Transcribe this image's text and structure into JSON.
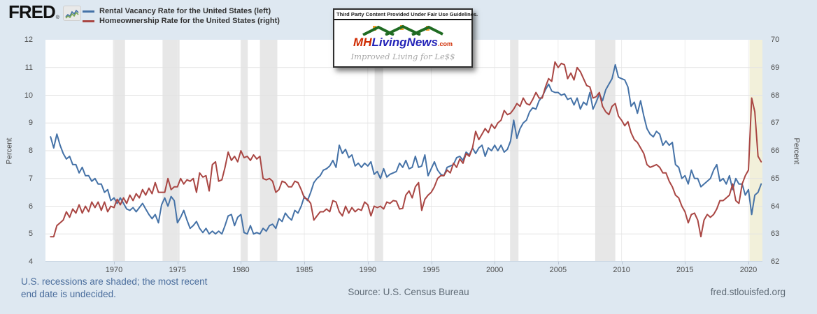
{
  "header": {
    "logo_text": "FRED",
    "registered_mark": "®",
    "legend": [
      {
        "label": "Rental Vacancy Rate for the United States (left)",
        "color": "#4572a7"
      },
      {
        "label": "Homeownership Rate for the United States (right)",
        "color": "#a94643"
      }
    ]
  },
  "watermark": {
    "disclaimer": "Third Party Content Provided Under Fair Use Guidelines.",
    "logo_mh": "MH",
    "logo_main": "LivingNews",
    "logo_tld": ".com",
    "tagline": "Improved Living for Le$$"
  },
  "footer": {
    "recession_note_line1": "U.S. recessions are shaded; the most recent",
    "recession_note_line2": "end date is undecided.",
    "source": "Source: U.S. Census Bureau",
    "site": "fred.stlouisfed.org"
  },
  "chart_data": {
    "type": "line",
    "x_start": 1965.0,
    "x_step": 0.25,
    "x_domain": [
      1964.6,
      2021.1
    ],
    "x_ticks": [
      1970,
      1975,
      1980,
      1985,
      1990,
      1995,
      2000,
      2005,
      2010,
      2015,
      2020
    ],
    "left_axis": {
      "label": "Percent",
      "min": 4,
      "max": 12,
      "ticks": [
        4,
        5,
        6,
        7,
        8,
        9,
        10,
        11,
        12
      ]
    },
    "right_axis": {
      "label": "Percent",
      "min": 62,
      "max": 70,
      "ticks": [
        62,
        63,
        64,
        65,
        66,
        67,
        68,
        69,
        70
      ]
    },
    "grid": {
      "horizontal_color": "#e3e3e3",
      "vertical_color": "#ececec",
      "axis_line_color": "#c9d5e2"
    },
    "recessions": [
      {
        "start": 1969.92,
        "end": 1970.87,
        "color": "#e7e7e7"
      },
      {
        "start": 1973.83,
        "end": 1975.17,
        "color": "#e7e7e7"
      },
      {
        "start": 1980.0,
        "end": 1980.54,
        "color": "#e7e7e7"
      },
      {
        "start": 1981.5,
        "end": 1982.87,
        "color": "#e7e7e7"
      },
      {
        "start": 1990.54,
        "end": 1991.21,
        "color": "#e7e7e7"
      },
      {
        "start": 2001.21,
        "end": 2001.87,
        "color": "#e7e7e7"
      },
      {
        "start": 2007.92,
        "end": 2009.5,
        "color": "#e7e7e7"
      },
      {
        "start": 2020.08,
        "end": 2021.1,
        "color": "#f2f0da",
        "ongoing": true
      }
    ],
    "series": [
      {
        "name": "Rental Vacancy Rate for the United States (left)",
        "axis": "left",
        "color": "#4572a7",
        "values": [
          8.5,
          8.1,
          8.6,
          8.2,
          7.9,
          7.7,
          7.8,
          7.5,
          7.5,
          7.2,
          7.4,
          7.1,
          7.1,
          6.9,
          7.0,
          6.8,
          6.8,
          6.5,
          6.6,
          6.2,
          6.3,
          6.1,
          6.3,
          6.1,
          5.9,
          5.85,
          5.95,
          5.8,
          5.95,
          6.1,
          5.9,
          5.7,
          5.55,
          5.7,
          5.4,
          6.05,
          6.3,
          6.0,
          6.35,
          6.2,
          5.4,
          5.6,
          5.85,
          5.5,
          5.2,
          5.3,
          5.45,
          5.2,
          5.05,
          5.2,
          5.0,
          5.1,
          5.0,
          5.1,
          5.0,
          5.3,
          5.65,
          5.7,
          5.3,
          5.6,
          5.7,
          5.05,
          5.0,
          5.3,
          5.0,
          5.05,
          5.0,
          5.2,
          5.1,
          5.3,
          5.35,
          5.2,
          5.55,
          5.45,
          5.75,
          5.6,
          5.5,
          5.85,
          5.75,
          6.0,
          6.35,
          6.2,
          6.5,
          6.85,
          7.0,
          7.1,
          7.3,
          7.35,
          7.45,
          7.65,
          7.4,
          8.2,
          7.9,
          8.05,
          7.75,
          7.85,
          7.45,
          7.55,
          7.4,
          7.55,
          7.45,
          7.6,
          7.15,
          7.25,
          7.0,
          7.35,
          7.05,
          7.15,
          7.2,
          7.25,
          7.55,
          7.4,
          7.65,
          7.35,
          7.4,
          7.8,
          7.4,
          7.45,
          7.85,
          7.1,
          7.35,
          7.6,
          7.3,
          7.15,
          7.1,
          7.4,
          7.45,
          7.5,
          7.75,
          7.8,
          7.65,
          7.95,
          7.85,
          8.1,
          7.9,
          8.1,
          8.2,
          7.8,
          8.1,
          8.0,
          8.2,
          8.0,
          8.2,
          7.95,
          8.05,
          8.35,
          9.1,
          8.45,
          8.8,
          9.0,
          9.1,
          9.4,
          9.55,
          9.5,
          9.8,
          9.95,
          10.2,
          10.4,
          10.15,
          10.1,
          10.1,
          10.0,
          10.05,
          9.85,
          9.9,
          9.65,
          9.9,
          9.5,
          9.75,
          9.65,
          10.1,
          9.5,
          9.75,
          10.05,
          9.8,
          10.2,
          10.4,
          10.6,
          11.1,
          10.65,
          10.6,
          10.55,
          10.3,
          9.6,
          9.75,
          9.35,
          9.8,
          9.25,
          8.8,
          8.6,
          8.5,
          8.7,
          8.6,
          8.2,
          8.35,
          8.2,
          8.3,
          7.5,
          7.4,
          7.0,
          7.1,
          6.8,
          7.3,
          7.0,
          7.0,
          6.7,
          6.8,
          6.9,
          7.0,
          7.3,
          7.5,
          6.9,
          7.0,
          6.8,
          7.1,
          6.6,
          7.0,
          6.8,
          6.8,
          6.4,
          6.6,
          5.7,
          6.4,
          6.5,
          6.8
        ]
      },
      {
        "name": "Homeownership Rate for the United States (right)",
        "axis": "right",
        "color": "#a94643",
        "values": [
          62.9,
          62.9,
          63.3,
          63.4,
          63.5,
          63.8,
          63.6,
          63.9,
          63.75,
          64.05,
          63.75,
          64.0,
          63.8,
          64.15,
          63.95,
          64.15,
          63.85,
          64.15,
          63.8,
          64.0,
          63.95,
          64.25,
          64.05,
          64.3,
          64.1,
          64.4,
          64.2,
          64.45,
          64.3,
          64.6,
          64.4,
          64.65,
          64.45,
          64.85,
          64.5,
          64.5,
          64.5,
          65.0,
          64.6,
          64.7,
          64.7,
          65.0,
          64.8,
          64.95,
          64.9,
          65.0,
          64.5,
          65.2,
          65.05,
          65.1,
          64.55,
          65.5,
          65.6,
          64.9,
          64.95,
          65.4,
          65.95,
          65.65,
          65.8,
          65.6,
          66.0,
          65.75,
          65.8,
          65.65,
          65.85,
          65.7,
          65.8,
          65.0,
          64.95,
          65.0,
          64.9,
          64.5,
          64.6,
          64.9,
          64.85,
          64.7,
          64.7,
          64.9,
          64.85,
          64.6,
          64.3,
          64.25,
          64.1,
          63.5,
          63.65,
          63.8,
          63.8,
          63.9,
          63.8,
          64.2,
          64.15,
          63.8,
          63.65,
          64.0,
          63.75,
          63.95,
          63.8,
          63.9,
          63.85,
          64.15,
          64.05,
          63.65,
          64.0,
          63.95,
          64.0,
          63.9,
          64.15,
          64.1,
          64.2,
          64.18,
          63.9,
          63.92,
          64.4,
          64.55,
          64.3,
          64.7,
          64.85,
          63.85,
          64.25,
          64.4,
          64.5,
          64.7,
          65.0,
          65.1,
          65.1,
          65.3,
          65.2,
          65.55,
          65.4,
          65.7,
          65.55,
          65.9,
          65.8,
          66.1,
          66.7,
          66.4,
          66.6,
          66.8,
          66.65,
          66.95,
          66.8,
          67.0,
          67.1,
          67.45,
          67.3,
          67.35,
          67.5,
          67.7,
          67.6,
          67.9,
          67.7,
          67.65,
          67.85,
          68.1,
          67.9,
          67.9,
          68.3,
          68.6,
          68.5,
          69.2,
          69.0,
          69.15,
          69.1,
          68.6,
          68.8,
          68.55,
          69.0,
          68.85,
          68.6,
          68.35,
          68.3,
          67.9,
          67.95,
          68.1,
          67.6,
          67.4,
          67.3,
          67.6,
          67.7,
          67.25,
          67.1,
          66.9,
          67.05,
          66.65,
          66.4,
          66.3,
          66.1,
          65.9,
          65.5,
          65.4,
          65.45,
          65.5,
          65.4,
          65.2,
          65.2,
          64.9,
          64.7,
          64.4,
          64.3,
          64.0,
          63.8,
          63.4,
          63.7,
          63.75,
          63.5,
          62.9,
          63.5,
          63.7,
          63.6,
          63.7,
          63.9,
          64.2,
          64.2,
          64.3,
          64.4,
          64.8,
          64.2,
          64.1,
          64.8,
          65.1,
          65.3,
          67.9,
          67.4,
          65.8,
          65.6
        ]
      }
    ]
  }
}
